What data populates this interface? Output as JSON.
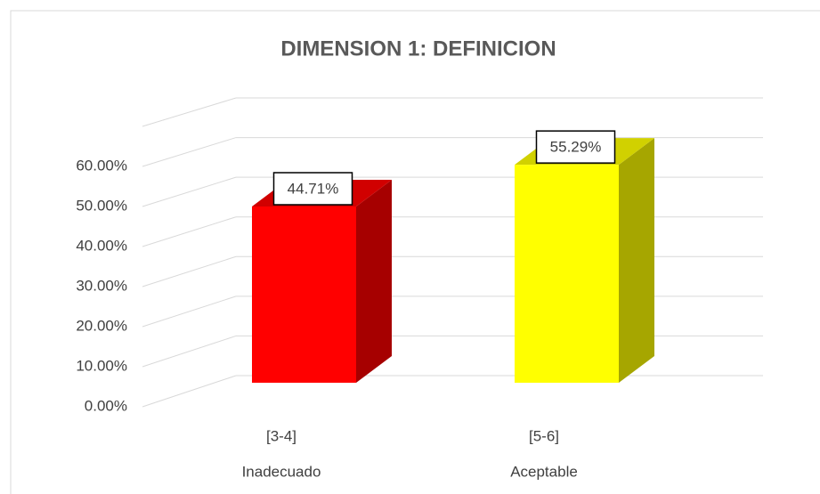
{
  "chart_data": {
    "type": "bar3d",
    "title": "DIMENSION 1: DEFINICION",
    "categories": [
      "[3-4]",
      "[5-6]"
    ],
    "category_groups": [
      "Inadecuado",
      "Aceptable"
    ],
    "values": [
      44.71,
      55.29
    ],
    "value_labels": [
      "44.71%",
      "55.29%"
    ],
    "colors": [
      "#ff0000",
      "#ffff00"
    ],
    "ylim": [
      0,
      70
    ],
    "yticks": [
      {
        "value": 0,
        "label": "0.00%"
      },
      {
        "value": 10,
        "label": "10.00%"
      },
      {
        "value": 20,
        "label": "20.00%"
      },
      {
        "value": 30,
        "label": "30.00%"
      },
      {
        "value": 40,
        "label": "40.00%"
      },
      {
        "value": 50,
        "label": "50.00%"
      },
      {
        "value": 60,
        "label": "60.00%"
      }
    ],
    "grid": true
  }
}
